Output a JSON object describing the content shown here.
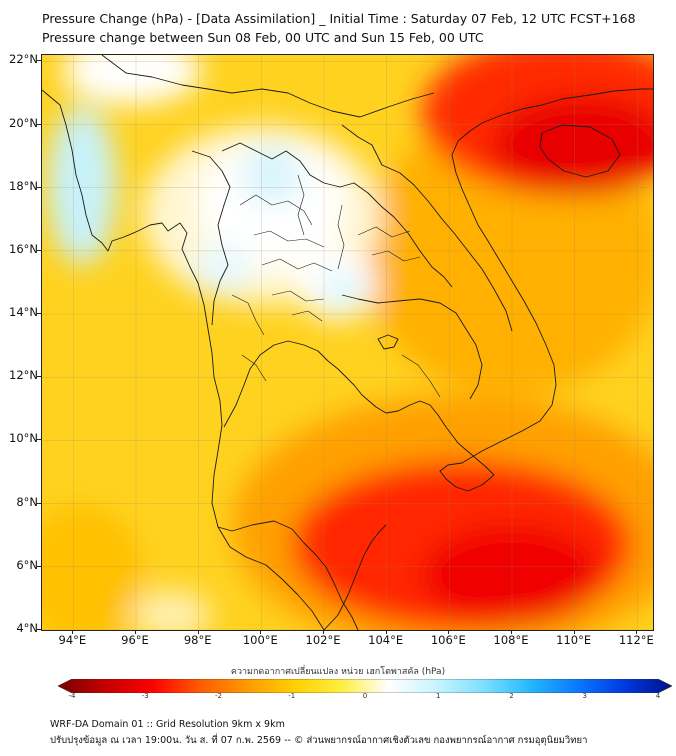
{
  "header": {
    "title_line1": "Pressure Change (hPa) - [Data Assimilation] _ Initial Time : Saturday 07 Feb, 12 UTC FCST+168",
    "title_line2": "Pressure change between Sun 08 Feb, 00 UTC and Sun 15 Feb, 00 UTC"
  },
  "map": {
    "lat_labels": [
      "22°N",
      "20°N",
      "18°N",
      "16°N",
      "14°N",
      "12°N",
      "10°N",
      "8°N",
      "6°N",
      "4°N"
    ],
    "lon_labels": [
      "94°E",
      "96°E",
      "98°E",
      "100°E",
      "102°E",
      "104°E",
      "106°E",
      "108°E",
      "110°E",
      "112°E"
    ],
    "extent": {
      "lon_min": 93.0,
      "lon_max": 112.5,
      "lat_min": 4.0,
      "lat_max": 22.2
    },
    "field_levels": [
      {
        "name": "strong-rise",
        "value_hPa": -3.5,
        "color": "#e30000"
      },
      {
        "name": "rise",
        "value_hPa": -2.5,
        "color": "#ff3a10"
      },
      {
        "name": "moderate",
        "value_hPa": -1.5,
        "color": "#ffb000"
      },
      {
        "name": "weak",
        "value_hPa": -0.8,
        "color": "#ffd21f"
      },
      {
        "name": "near-zero",
        "value_hPa": 0.0,
        "color": "#ffffff"
      },
      {
        "name": "slight-positive",
        "value_hPa": 0.5,
        "color": "#bff0fb"
      }
    ]
  },
  "colorbar": {
    "title": "ความกดอากาศเปลี่ยนแปลง หน่วย เฮกโตพาสคัล (hPa)",
    "labels": [
      "-4",
      "-3",
      "-2",
      "-1",
      "0",
      "1",
      "2",
      "3",
      "4"
    ],
    "min": -4,
    "max": 4,
    "colors": [
      "#7a0000",
      "#c40000",
      "#ff0000",
      "#ff5a00",
      "#ff9a00",
      "#ffcf00",
      "#ffee40",
      "#ffffff",
      "#c8f4ff",
      "#7ee0ff",
      "#25b8ff",
      "#0a78ff",
      "#0038e0",
      "#00108a"
    ]
  },
  "footer": {
    "line1": "WRF-DA Domain 01 :: Grid Resolution 9km x 9km",
    "line2": "ปรับปรุงข้อมูล ณ เวลา 19:00น. วัน ส. ที่ 07 ก.พ. 2569 -- © ส่วนพยากรณ์อากาศเชิงตัวเลข กองพยากรณ์อากาศ กรมอุตุนิยมวิทยา"
  }
}
